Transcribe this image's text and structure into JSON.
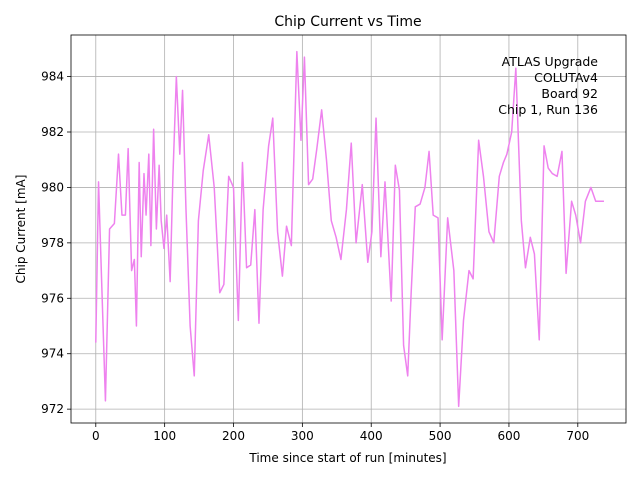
{
  "chart_data": {
    "type": "line",
    "title": "Chip Current vs Time",
    "xlabel": "Time since start of run [minutes]",
    "ylabel": "Chip Current [mA]",
    "xlim": [
      -36,
      770
    ],
    "ylim": [
      971.5,
      985.5
    ],
    "xticks": [
      0,
      100,
      200,
      300,
      400,
      500,
      600,
      700
    ],
    "yticks": [
      972,
      974,
      976,
      978,
      980,
      982,
      984
    ],
    "grid": true,
    "line_color": "#ee82ee",
    "annotation": [
      "ATLAS Upgrade",
      "COLUTAv4",
      "Board 92",
      "Chip 1, Run 136"
    ],
    "series": [
      {
        "x": [
          0,
          4,
          8,
          14,
          20,
          27,
          33,
          38,
          43,
          47,
          52,
          56,
          59,
          63,
          66,
          70,
          73,
          77,
          80,
          84,
          88,
          92,
          95,
          99,
          103,
          108,
          112,
          117,
          122,
          126,
          131,
          137,
          143,
          149,
          156,
          164,
          172,
          180,
          186,
          193,
          200,
          207,
          213,
          219,
          225,
          231,
          237,
          243,
          251,
          257,
          264,
          271,
          277,
          284,
          292,
          298,
          303,
          309,
          315,
          321,
          328,
          335,
          342,
          349,
          356,
          364,
          371,
          378,
          387,
          395,
          401,
          407,
          414,
          420,
          429,
          435,
          441,
          447,
          453,
          458,
          464,
          471,
          478,
          484,
          490,
          497,
          503,
          511,
          520,
          527,
          534,
          542,
          548,
          556,
          563,
          571,
          578,
          586,
          592,
          597,
          604,
          610,
          618,
          624,
          631,
          637,
          644,
          651,
          657,
          663,
          670,
          677,
          683,
          691,
          697,
          704,
          711,
          719,
          726,
          733,
          738
        ],
        "y": [
          974.4,
          980.2,
          977.0,
          972.3,
          978.5,
          978.7,
          981.2,
          979.0,
          979.0,
          981.4,
          977.0,
          977.4,
          975.0,
          980.9,
          977.5,
          980.5,
          979.0,
          981.2,
          977.9,
          982.1,
          978.5,
          980.8,
          978.8,
          977.8,
          979.0,
          976.6,
          980.4,
          984.0,
          981.2,
          983.5,
          979.2,
          975.0,
          973.2,
          978.8,
          980.6,
          981.9,
          980.0,
          976.2,
          976.5,
          980.4,
          980.0,
          975.2,
          980.9,
          977.1,
          977.2,
          979.2,
          975.1,
          979.2,
          981.5,
          982.5,
          978.4,
          976.8,
          978.6,
          977.9,
          984.9,
          981.7,
          984.7,
          980.1,
          980.3,
          981.4,
          982.8,
          981.0,
          978.8,
          978.2,
          977.4,
          979.2,
          981.6,
          978.0,
          980.1,
          977.3,
          978.4,
          982.5,
          977.5,
          980.2,
          975.9,
          980.8,
          979.9,
          974.3,
          973.2,
          976.2,
          979.3,
          979.4,
          980.0,
          981.3,
          979.0,
          978.9,
          974.5,
          978.9,
          977.0,
          972.1,
          975.2,
          977.0,
          976.7,
          981.7,
          980.4,
          978.4,
          978.0,
          980.4,
          980.9,
          981.2,
          982.0,
          984.3,
          978.8,
          977.1,
          978.2,
          977.6,
          974.5,
          981.5,
          980.7,
          980.5,
          980.4,
          981.3,
          976.9,
          979.5,
          979.0,
          978.0,
          979.5,
          980.0,
          979.5,
          979.5,
          979.5
        ]
      }
    ]
  }
}
